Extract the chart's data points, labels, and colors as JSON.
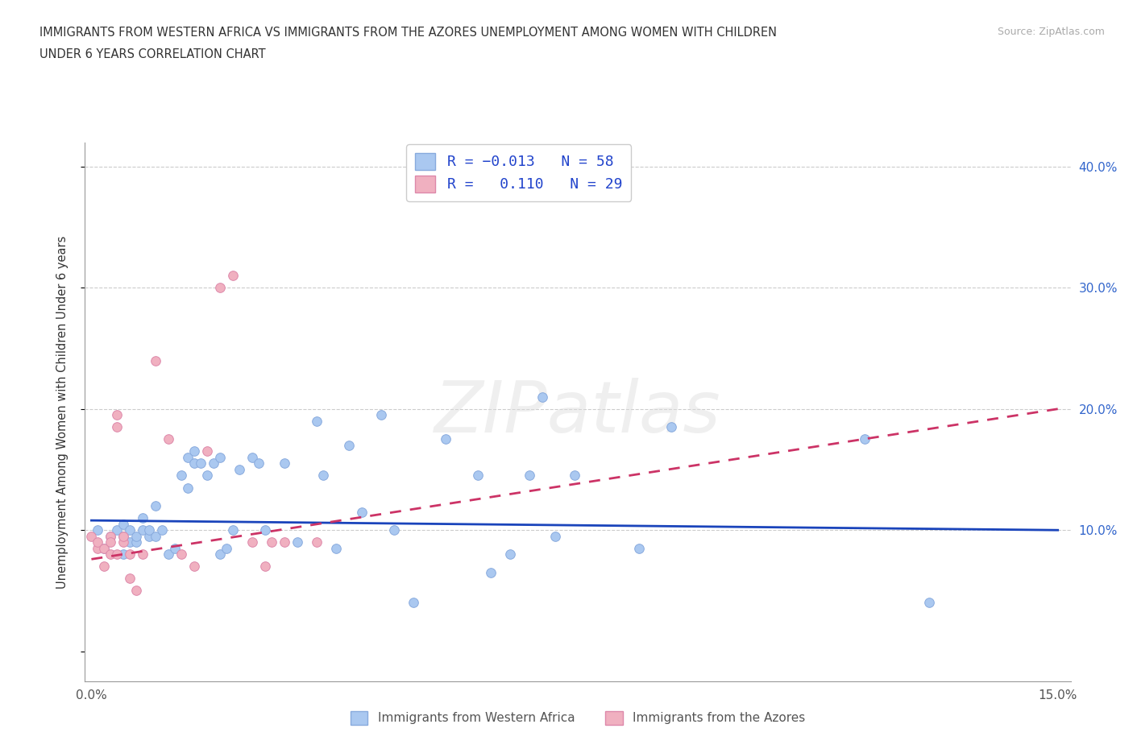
{
  "title_line1": "IMMIGRANTS FROM WESTERN AFRICA VS IMMIGRANTS FROM THE AZORES UNEMPLOYMENT AMONG WOMEN WITH CHILDREN",
  "title_line2": "UNDER 6 YEARS CORRELATION CHART",
  "source": "Source: ZipAtlas.com",
  "ylabel": "Unemployment Among Women with Children Under 6 years",
  "xlim": [
    -0.001,
    0.152
  ],
  "ylim": [
    -0.025,
    0.42
  ],
  "blue_fill": "#aac8f0",
  "blue_edge": "#88aadd",
  "pink_fill": "#f0b0c0",
  "pink_edge": "#dd88aa",
  "line_blue": "#1a44bb",
  "line_pink": "#cc3366",
  "legend_label_blue": "Immigrants from Western Africa",
  "legend_label_pink": "Immigrants from the Azores",
  "watermark_text": "ZIPatlas",
  "blue_scatter_x": [
    0.001,
    0.002,
    0.003,
    0.004,
    0.005,
    0.005,
    0.005,
    0.006,
    0.006,
    0.007,
    0.007,
    0.008,
    0.008,
    0.009,
    0.009,
    0.01,
    0.01,
    0.011,
    0.012,
    0.013,
    0.014,
    0.015,
    0.015,
    0.016,
    0.016,
    0.017,
    0.018,
    0.019,
    0.02,
    0.02,
    0.021,
    0.022,
    0.023,
    0.025,
    0.026,
    0.027,
    0.03,
    0.032,
    0.035,
    0.036,
    0.038,
    0.04,
    0.042,
    0.045,
    0.047,
    0.05,
    0.055,
    0.06,
    0.062,
    0.065,
    0.068,
    0.07,
    0.072,
    0.075,
    0.085,
    0.09,
    0.12,
    0.13
  ],
  "blue_scatter_y": [
    0.1,
    0.085,
    0.095,
    0.1,
    0.095,
    0.08,
    0.105,
    0.09,
    0.1,
    0.09,
    0.095,
    0.1,
    0.11,
    0.095,
    0.1,
    0.095,
    0.12,
    0.1,
    0.08,
    0.085,
    0.145,
    0.135,
    0.16,
    0.155,
    0.165,
    0.155,
    0.145,
    0.155,
    0.16,
    0.08,
    0.085,
    0.1,
    0.15,
    0.16,
    0.155,
    0.1,
    0.155,
    0.09,
    0.19,
    0.145,
    0.085,
    0.17,
    0.115,
    0.195,
    0.1,
    0.04,
    0.175,
    0.145,
    0.065,
    0.08,
    0.145,
    0.21,
    0.095,
    0.145,
    0.085,
    0.185,
    0.175,
    0.04
  ],
  "pink_scatter_x": [
    0.0,
    0.001,
    0.001,
    0.002,
    0.002,
    0.003,
    0.003,
    0.003,
    0.004,
    0.004,
    0.004,
    0.005,
    0.005,
    0.006,
    0.006,
    0.007,
    0.008,
    0.01,
    0.012,
    0.014,
    0.016,
    0.018,
    0.02,
    0.022,
    0.025,
    0.027,
    0.028,
    0.03,
    0.035
  ],
  "pink_scatter_y": [
    0.095,
    0.085,
    0.09,
    0.07,
    0.085,
    0.095,
    0.08,
    0.09,
    0.08,
    0.185,
    0.195,
    0.09,
    0.095,
    0.06,
    0.08,
    0.05,
    0.08,
    0.24,
    0.175,
    0.08,
    0.07,
    0.165,
    0.3,
    0.31,
    0.09,
    0.07,
    0.09,
    0.09,
    0.09
  ],
  "blue_line_x0": 0.0,
  "blue_line_x1": 0.15,
  "blue_line_y0": 0.108,
  "blue_line_y1": 0.1,
  "pink_line_x0": 0.0,
  "pink_line_x1": 0.15,
  "pink_line_y0": 0.076,
  "pink_line_y1": 0.2
}
